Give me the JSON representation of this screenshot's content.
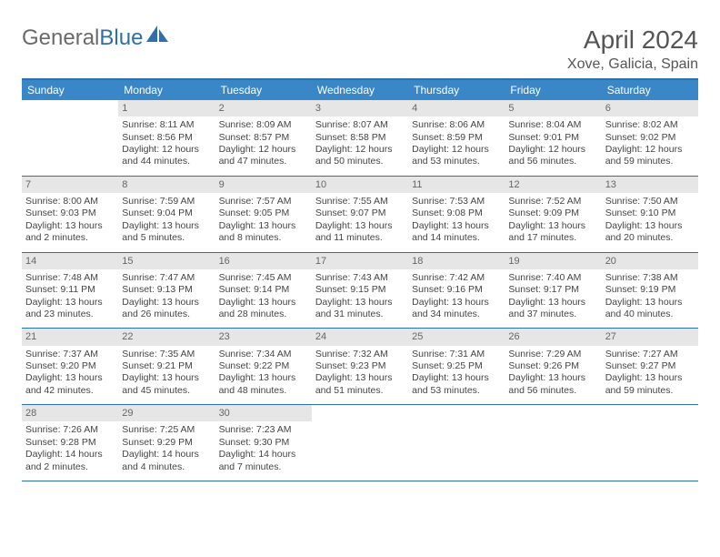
{
  "logo": {
    "text_gray": "General",
    "text_blue": "Blue"
  },
  "header": {
    "title": "April 2024",
    "location": "Xove, Galicia, Spain"
  },
  "colors": {
    "header_bar": "#3a87c8",
    "border": "#2e6fad",
    "daynum_bg": "#e6e6e6",
    "text": "#444444",
    "logo_gray": "#6a6a6a",
    "logo_blue": "#2e6fad"
  },
  "day_names": [
    "Sunday",
    "Monday",
    "Tuesday",
    "Wednesday",
    "Thursday",
    "Friday",
    "Saturday"
  ],
  "weeks": [
    [
      {
        "n": "",
        "sunrise": "",
        "sunset": "",
        "daylight1": "",
        "daylight2": ""
      },
      {
        "n": "1",
        "sunrise": "Sunrise: 8:11 AM",
        "sunset": "Sunset: 8:56 PM",
        "daylight1": "Daylight: 12 hours",
        "daylight2": "and 44 minutes."
      },
      {
        "n": "2",
        "sunrise": "Sunrise: 8:09 AM",
        "sunset": "Sunset: 8:57 PM",
        "daylight1": "Daylight: 12 hours",
        "daylight2": "and 47 minutes."
      },
      {
        "n": "3",
        "sunrise": "Sunrise: 8:07 AM",
        "sunset": "Sunset: 8:58 PM",
        "daylight1": "Daylight: 12 hours",
        "daylight2": "and 50 minutes."
      },
      {
        "n": "4",
        "sunrise": "Sunrise: 8:06 AM",
        "sunset": "Sunset: 8:59 PM",
        "daylight1": "Daylight: 12 hours",
        "daylight2": "and 53 minutes."
      },
      {
        "n": "5",
        "sunrise": "Sunrise: 8:04 AM",
        "sunset": "Sunset: 9:01 PM",
        "daylight1": "Daylight: 12 hours",
        "daylight2": "and 56 minutes."
      },
      {
        "n": "6",
        "sunrise": "Sunrise: 8:02 AM",
        "sunset": "Sunset: 9:02 PM",
        "daylight1": "Daylight: 12 hours",
        "daylight2": "and 59 minutes."
      }
    ],
    [
      {
        "n": "7",
        "sunrise": "Sunrise: 8:00 AM",
        "sunset": "Sunset: 9:03 PM",
        "daylight1": "Daylight: 13 hours",
        "daylight2": "and 2 minutes."
      },
      {
        "n": "8",
        "sunrise": "Sunrise: 7:59 AM",
        "sunset": "Sunset: 9:04 PM",
        "daylight1": "Daylight: 13 hours",
        "daylight2": "and 5 minutes."
      },
      {
        "n": "9",
        "sunrise": "Sunrise: 7:57 AM",
        "sunset": "Sunset: 9:05 PM",
        "daylight1": "Daylight: 13 hours",
        "daylight2": "and 8 minutes."
      },
      {
        "n": "10",
        "sunrise": "Sunrise: 7:55 AM",
        "sunset": "Sunset: 9:07 PM",
        "daylight1": "Daylight: 13 hours",
        "daylight2": "and 11 minutes."
      },
      {
        "n": "11",
        "sunrise": "Sunrise: 7:53 AM",
        "sunset": "Sunset: 9:08 PM",
        "daylight1": "Daylight: 13 hours",
        "daylight2": "and 14 minutes."
      },
      {
        "n": "12",
        "sunrise": "Sunrise: 7:52 AM",
        "sunset": "Sunset: 9:09 PM",
        "daylight1": "Daylight: 13 hours",
        "daylight2": "and 17 minutes."
      },
      {
        "n": "13",
        "sunrise": "Sunrise: 7:50 AM",
        "sunset": "Sunset: 9:10 PM",
        "daylight1": "Daylight: 13 hours",
        "daylight2": "and 20 minutes."
      }
    ],
    [
      {
        "n": "14",
        "sunrise": "Sunrise: 7:48 AM",
        "sunset": "Sunset: 9:11 PM",
        "daylight1": "Daylight: 13 hours",
        "daylight2": "and 23 minutes."
      },
      {
        "n": "15",
        "sunrise": "Sunrise: 7:47 AM",
        "sunset": "Sunset: 9:13 PM",
        "daylight1": "Daylight: 13 hours",
        "daylight2": "and 26 minutes."
      },
      {
        "n": "16",
        "sunrise": "Sunrise: 7:45 AM",
        "sunset": "Sunset: 9:14 PM",
        "daylight1": "Daylight: 13 hours",
        "daylight2": "and 28 minutes."
      },
      {
        "n": "17",
        "sunrise": "Sunrise: 7:43 AM",
        "sunset": "Sunset: 9:15 PM",
        "daylight1": "Daylight: 13 hours",
        "daylight2": "and 31 minutes."
      },
      {
        "n": "18",
        "sunrise": "Sunrise: 7:42 AM",
        "sunset": "Sunset: 9:16 PM",
        "daylight1": "Daylight: 13 hours",
        "daylight2": "and 34 minutes."
      },
      {
        "n": "19",
        "sunrise": "Sunrise: 7:40 AM",
        "sunset": "Sunset: 9:17 PM",
        "daylight1": "Daylight: 13 hours",
        "daylight2": "and 37 minutes."
      },
      {
        "n": "20",
        "sunrise": "Sunrise: 7:38 AM",
        "sunset": "Sunset: 9:19 PM",
        "daylight1": "Daylight: 13 hours",
        "daylight2": "and 40 minutes."
      }
    ],
    [
      {
        "n": "21",
        "sunrise": "Sunrise: 7:37 AM",
        "sunset": "Sunset: 9:20 PM",
        "daylight1": "Daylight: 13 hours",
        "daylight2": "and 42 minutes."
      },
      {
        "n": "22",
        "sunrise": "Sunrise: 7:35 AM",
        "sunset": "Sunset: 9:21 PM",
        "daylight1": "Daylight: 13 hours",
        "daylight2": "and 45 minutes."
      },
      {
        "n": "23",
        "sunrise": "Sunrise: 7:34 AM",
        "sunset": "Sunset: 9:22 PM",
        "daylight1": "Daylight: 13 hours",
        "daylight2": "and 48 minutes."
      },
      {
        "n": "24",
        "sunrise": "Sunrise: 7:32 AM",
        "sunset": "Sunset: 9:23 PM",
        "daylight1": "Daylight: 13 hours",
        "daylight2": "and 51 minutes."
      },
      {
        "n": "25",
        "sunrise": "Sunrise: 7:31 AM",
        "sunset": "Sunset: 9:25 PM",
        "daylight1": "Daylight: 13 hours",
        "daylight2": "and 53 minutes."
      },
      {
        "n": "26",
        "sunrise": "Sunrise: 7:29 AM",
        "sunset": "Sunset: 9:26 PM",
        "daylight1": "Daylight: 13 hours",
        "daylight2": "and 56 minutes."
      },
      {
        "n": "27",
        "sunrise": "Sunrise: 7:27 AM",
        "sunset": "Sunset: 9:27 PM",
        "daylight1": "Daylight: 13 hours",
        "daylight2": "and 59 minutes."
      }
    ],
    [
      {
        "n": "28",
        "sunrise": "Sunrise: 7:26 AM",
        "sunset": "Sunset: 9:28 PM",
        "daylight1": "Daylight: 14 hours",
        "daylight2": "and 2 minutes."
      },
      {
        "n": "29",
        "sunrise": "Sunrise: 7:25 AM",
        "sunset": "Sunset: 9:29 PM",
        "daylight1": "Daylight: 14 hours",
        "daylight2": "and 4 minutes."
      },
      {
        "n": "30",
        "sunrise": "Sunrise: 7:23 AM",
        "sunset": "Sunset: 9:30 PM",
        "daylight1": "Daylight: 14 hours",
        "daylight2": "and 7 minutes."
      },
      {
        "n": "",
        "sunrise": "",
        "sunset": "",
        "daylight1": "",
        "daylight2": ""
      },
      {
        "n": "",
        "sunrise": "",
        "sunset": "",
        "daylight1": "",
        "daylight2": ""
      },
      {
        "n": "",
        "sunrise": "",
        "sunset": "",
        "daylight1": "",
        "daylight2": ""
      },
      {
        "n": "",
        "sunrise": "",
        "sunset": "",
        "daylight1": "",
        "daylight2": ""
      }
    ]
  ]
}
